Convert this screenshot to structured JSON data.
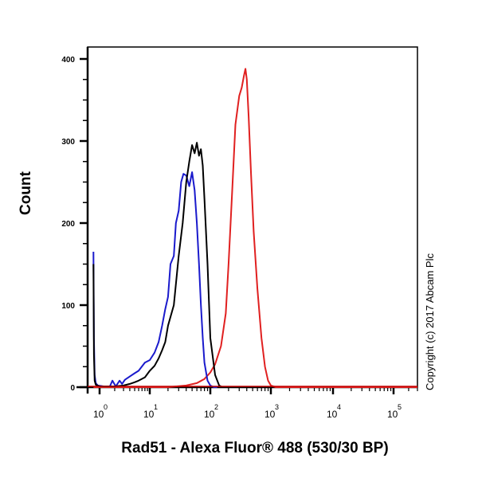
{
  "chart_data": {
    "type": "line",
    "title": "",
    "xlabel": "Rad51 - Alexa Fluor® 488 (530/30 BP)",
    "ylabel": "Count",
    "xscale": "logicle",
    "x_ticks": [
      {
        "base": "10",
        "exp": "0",
        "value": 1
      },
      {
        "base": "10",
        "exp": "1",
        "value": 10
      },
      {
        "base": "10",
        "exp": "2",
        "value": 100
      },
      {
        "base": "10",
        "exp": "3",
        "value": 1000
      },
      {
        "base": "10",
        "exp": "4",
        "value": 10000
      },
      {
        "base": "10",
        "exp": "5",
        "value": 100000
      }
    ],
    "y_ticks": [
      0,
      100,
      200,
      300,
      400
    ],
    "ylim": [
      0,
      410
    ],
    "grid": false,
    "legend": null,
    "series": [
      {
        "name": "Blue histogram",
        "color": "#1a1acc",
        "x": [
          0.7,
          0.72,
          0.75,
          0.8,
          0.9,
          1.2,
          1.6,
          1.8,
          2.1,
          2.5,
          2.8,
          3.2,
          4,
          5,
          6,
          8,
          10,
          12,
          14,
          16,
          18,
          20,
          22,
          25,
          27,
          30,
          33,
          36,
          40,
          45,
          50,
          55,
          60,
          65,
          70,
          75,
          80,
          90,
          100,
          115,
          130
        ],
        "y": [
          165,
          60,
          15,
          5,
          2,
          1,
          1,
          8,
          1,
          8,
          4,
          9,
          13,
          17,
          20,
          30,
          33,
          42,
          55,
          75,
          95,
          110,
          150,
          160,
          200,
          215,
          250,
          260,
          258,
          245,
          262,
          240,
          200,
          150,
          100,
          60,
          30,
          8,
          2,
          0,
          0
        ]
      },
      {
        "name": "Black histogram",
        "color": "#000000",
        "x": [
          0.7,
          0.72,
          0.75,
          0.8,
          1.0,
          1.5,
          2,
          3,
          4,
          5,
          6,
          8,
          10,
          12,
          14,
          16,
          18,
          20,
          25,
          30,
          35,
          40,
          45,
          50,
          55,
          60,
          65,
          70,
          75,
          80,
          90,
          100,
          120,
          140,
          160
        ],
        "y": [
          150,
          40,
          8,
          3,
          1,
          1,
          1,
          2,
          4,
          6,
          8,
          12,
          20,
          26,
          35,
          45,
          55,
          75,
          100,
          160,
          200,
          250,
          275,
          295,
          285,
          298,
          282,
          290,
          270,
          230,
          150,
          60,
          15,
          2,
          0
        ]
      },
      {
        "name": "Red histogram",
        "color": "#e02020",
        "x": [
          0.7,
          20,
          40,
          60,
          80,
          100,
          120,
          150,
          180,
          200,
          230,
          260,
          300,
          330,
          360,
          380,
          400,
          430,
          470,
          520,
          600,
          700,
          800,
          900,
          1000,
          1200,
          100000,
          300000
        ],
        "y": [
          0,
          0,
          2,
          5,
          10,
          18,
          28,
          50,
          90,
          150,
          240,
          320,
          355,
          365,
          380,
          388,
          375,
          330,
          260,
          190,
          120,
          60,
          25,
          8,
          2,
          0,
          0,
          0
        ]
      }
    ],
    "annotations": [
      "Copyright (c) 2017 Abcam Plc"
    ]
  },
  "labels": {
    "ylabel": "Count",
    "xlabel": "Rad51 - Alexa Fluor® 488 (530/30 BP)",
    "copyright": "Copyright (c) 2017 Abcam Plc"
  }
}
